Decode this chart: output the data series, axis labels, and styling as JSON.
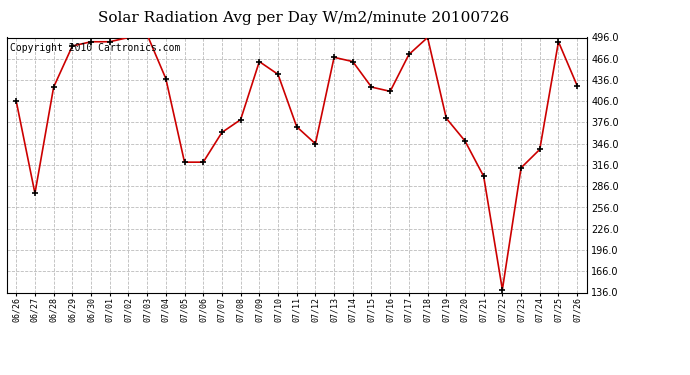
{
  "title": "Solar Radiation Avg per Day W/m2/minute 20100726",
  "copyright_text": "Copyright 2010 Cartronics.com",
  "dates": [
    "06/26",
    "06/27",
    "06/28",
    "06/29",
    "06/30",
    "07/01",
    "07/02",
    "07/03",
    "07/04",
    "07/05",
    "07/06",
    "07/07",
    "07/08",
    "07/09",
    "07/10",
    "07/11",
    "07/12",
    "07/13",
    "07/14",
    "07/15",
    "07/16",
    "07/17",
    "07/18",
    "07/19",
    "07/20",
    "07/21",
    "07/22",
    "07/23",
    "07/24",
    "07/25",
    "07/26"
  ],
  "values": [
    406,
    276,
    426,
    484,
    490,
    490,
    496,
    500,
    438,
    320,
    320,
    362,
    380,
    462,
    444,
    370,
    346,
    468,
    462,
    426,
    420,
    472,
    496,
    382,
    350,
    300,
    140,
    312,
    338,
    490,
    428
  ],
  "line_color": "#cc0000",
  "marker_color": "#000000",
  "background_color": "#ffffff",
  "grid_color": "#bbbbbb",
  "ylim_min": 136.0,
  "ylim_max": 496.0,
  "ytick_step": 30.0,
  "title_fontsize": 11,
  "copyright_fontsize": 7
}
